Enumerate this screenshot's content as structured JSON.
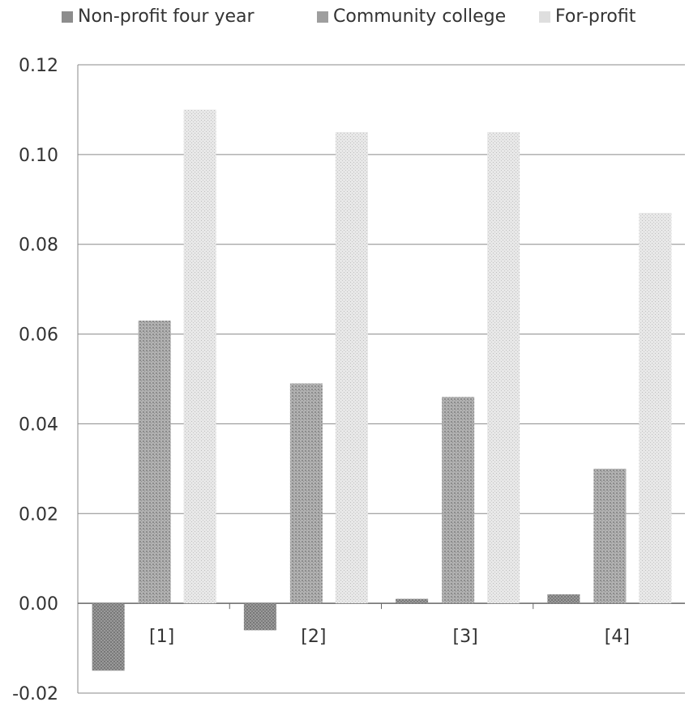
{
  "chart_data": {
    "type": "bar",
    "title": "",
    "xlabel": "",
    "ylabel": "",
    "categories": [
      "[1]",
      "[2]",
      "[3]",
      "[4]"
    ],
    "series": [
      {
        "name": "Non-profit four year",
        "values": [
          -0.015,
          -0.006,
          0.001,
          0.002
        ],
        "color": "#8d8d8d"
      },
      {
        "name": "Community college",
        "values": [
          0.063,
          0.049,
          0.046,
          0.03
        ],
        "color": "#9e9e9e"
      },
      {
        "name": "For-profit",
        "values": [
          0.11,
          0.105,
          0.105,
          0.087
        ],
        "color": "#dedede"
      }
    ],
    "ylim": [
      -0.02,
      0.12
    ],
    "yticks": [
      "-0.02",
      "0.00",
      "0.02",
      "0.04",
      "0.06",
      "0.08",
      "0.10",
      "0.12"
    ],
    "grid": true,
    "legend_position": "top"
  }
}
